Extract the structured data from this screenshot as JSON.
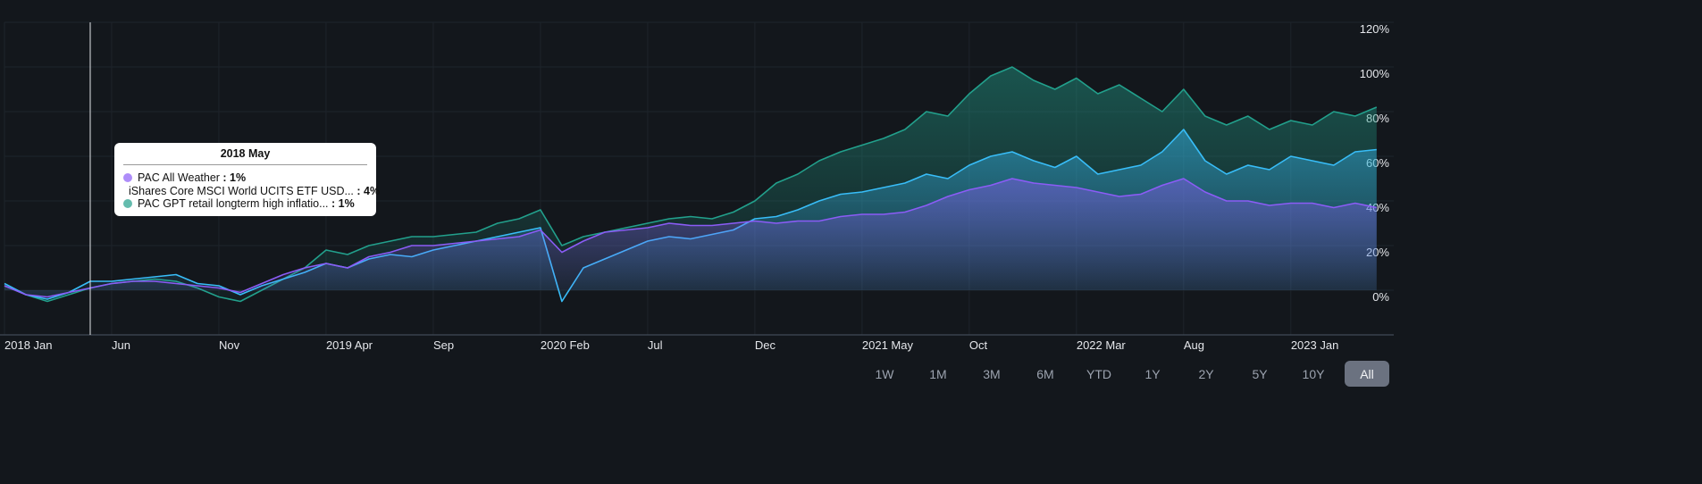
{
  "chart_data": {
    "type": "area",
    "x": [
      "2018 Jan",
      "2018 Feb",
      "2018 Mar",
      "2018 Apr",
      "2018 May",
      "2018 Jun",
      "2018 Jul",
      "2018 Aug",
      "2018 Sep",
      "2018 Oct",
      "2018 Nov",
      "2018 Dec",
      "2019 Jan",
      "2019 Feb",
      "2019 Mar",
      "2019 Apr",
      "2019 May",
      "2019 Jun",
      "2019 Jul",
      "2019 Aug",
      "2019 Sep",
      "2019 Oct",
      "2019 Nov",
      "2019 Dec",
      "2020 Jan",
      "2020 Feb",
      "2020 Mar",
      "2020 Apr",
      "2020 May",
      "2020 Jun",
      "2020 Jul",
      "2020 Aug",
      "2020 Sep",
      "2020 Oct",
      "2020 Nov",
      "2020 Dec",
      "2021 Jan",
      "2021 Feb",
      "2021 Mar",
      "2021 Apr",
      "2021 May",
      "2021 Jun",
      "2021 Jul",
      "2021 Aug",
      "2021 Sep",
      "2021 Oct",
      "2021 Nov",
      "2021 Dec",
      "2022 Jan",
      "2022 Feb",
      "2022 Mar",
      "2022 Apr",
      "2022 May",
      "2022 Jun",
      "2022 Jul",
      "2022 Aug",
      "2022 Sep",
      "2022 Oct",
      "2022 Nov",
      "2022 Dec",
      "2023 Jan",
      "2023 Feb",
      "2023 Mar",
      "2023 Apr",
      "2023 May"
    ],
    "xticks": [
      {
        "value": "2018 Jan",
        "label": "2018 Jan"
      },
      {
        "value": "2018 Jun",
        "label": "Jun"
      },
      {
        "value": "2018 Nov",
        "label": "Nov"
      },
      {
        "value": "2019 Apr",
        "label": "2019 Apr"
      },
      {
        "value": "2019 Sep",
        "label": "Sep"
      },
      {
        "value": "2020 Feb",
        "label": "2020 Feb"
      },
      {
        "value": "2020 Jul",
        "label": "Jul"
      },
      {
        "value": "2020 Dec",
        "label": "Dec"
      },
      {
        "value": "2021 May",
        "label": "2021 May"
      },
      {
        "value": "2021 Oct",
        "label": "Oct"
      },
      {
        "value": "2022 Mar",
        "label": "2022 Mar"
      },
      {
        "value": "2022 Aug",
        "label": "Aug"
      },
      {
        "value": "2023 Jan",
        "label": "2023 Jan"
      }
    ],
    "ylim": [
      -20,
      120
    ],
    "yticks": [
      {
        "value": 0,
        "label": "0%"
      },
      {
        "value": 20,
        "label": "20%"
      },
      {
        "value": 40,
        "label": "40%"
      },
      {
        "value": 60,
        "label": "60%"
      },
      {
        "value": 80,
        "label": "80%"
      },
      {
        "value": 100,
        "label": "100%"
      },
      {
        "value": 120,
        "label": "120%"
      }
    ],
    "grid": true,
    "series": [
      {
        "name": "PAC All Weather",
        "color": "#8b5cf6",
        "values": [
          2,
          -2,
          -3,
          -1,
          1,
          3,
          4,
          4,
          3,
          2,
          1,
          -1,
          3,
          7,
          10,
          12,
          10,
          15,
          17,
          20,
          20,
          21,
          22,
          23,
          24,
          27,
          17,
          22,
          26,
          27,
          28,
          30,
          29,
          29,
          30,
          31,
          30,
          31,
          31,
          33,
          34,
          34,
          35,
          38,
          42,
          45,
          47,
          50,
          48,
          47,
          46,
          44,
          42,
          43,
          47,
          50,
          44,
          40,
          40,
          38,
          39,
          39,
          37,
          39,
          37
        ]
      },
      {
        "name": "iShares Core MSCI World UCITS ETF USD...",
        "color": "#38bdf8",
        "values": [
          3,
          -2,
          -4,
          -1,
          4,
          4,
          5,
          6,
          7,
          3,
          2,
          -2,
          2,
          5,
          8,
          12,
          10,
          14,
          16,
          15,
          18,
          20,
          22,
          24,
          26,
          28,
          -5,
          10,
          14,
          18,
          22,
          24,
          23,
          25,
          27,
          32,
          33,
          36,
          40,
          43,
          44,
          46,
          48,
          52,
          50,
          56,
          60,
          62,
          58,
          55,
          60,
          52,
          54,
          56,
          62,
          72,
          58,
          52,
          56,
          54,
          60,
          58,
          56,
          62,
          63
        ]
      },
      {
        "name": "PAC GPT retail longterm high inflatio...",
        "color": "#22a08c",
        "values": [
          2,
          -2,
          -5,
          -2,
          1,
          3,
          4,
          5,
          4,
          1,
          -3,
          -5,
          0,
          5,
          10,
          18,
          16,
          20,
          22,
          24,
          24,
          25,
          26,
          30,
          32,
          36,
          20,
          24,
          26,
          28,
          30,
          32,
          33,
          32,
          35,
          40,
          48,
          52,
          58,
          62,
          65,
          68,
          72,
          80,
          78,
          88,
          96,
          100,
          94,
          90,
          95,
          88,
          92,
          86,
          80,
          90,
          78,
          74,
          78,
          72,
          76,
          74,
          80,
          78,
          82
        ]
      }
    ],
    "tooltip": {
      "title": "2018 May",
      "values": [
        1,
        4,
        1
      ],
      "value_labels": [
        "1%",
        "4%",
        "1%"
      ]
    }
  },
  "range_buttons": {
    "options": [
      "1W",
      "1M",
      "3M",
      "6M",
      "YTD",
      "1Y",
      "2Y",
      "5Y",
      "10Y",
      "All"
    ],
    "active_index": 9
  }
}
